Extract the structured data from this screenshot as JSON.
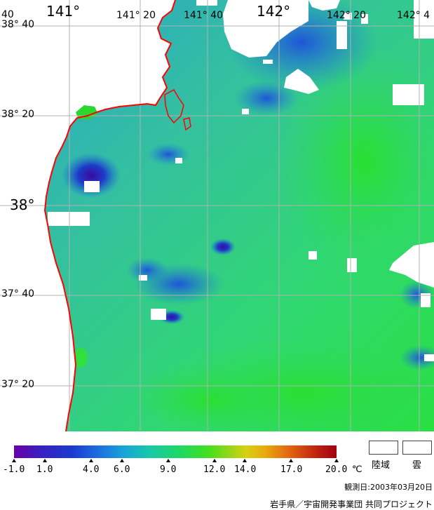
{
  "map": {
    "lon_labels": [
      {
        "text": "40",
        "size": "small"
      },
      {
        "text": "141°",
        "size": "big"
      },
      {
        "text": "141° 20",
        "size": "small"
      },
      {
        "text": "141° 40",
        "size": "small"
      },
      {
        "text": "142°",
        "size": "big"
      },
      {
        "text": "142° 20",
        "size": "small"
      },
      {
        "text": "142° 4",
        "size": "small"
      }
    ],
    "lat_labels": [
      {
        "text": "38° 40",
        "size": "small"
      },
      {
        "text": "38° 20",
        "size": "small"
      },
      {
        "text": "38°",
        "size": "big"
      },
      {
        "text": "37° 40",
        "size": "small"
      },
      {
        "text": "37° 20",
        "size": "small"
      }
    ],
    "colors": {
      "land": "#ffffff",
      "coast": "#ff0000",
      "grid": "#b0b0b0",
      "sst_base": "#3cc890",
      "sst_warm": "#30e040",
      "sst_cool": "#1a6fe0",
      "sst_cold": "#3a10b0"
    }
  },
  "colorbar": {
    "ticks": [
      "-1.0",
      "1.0",
      "4.0",
      "6.0",
      "9.0",
      "12.0",
      "14.0",
      "17.0",
      "20.0"
    ],
    "tick_values": [
      -1.0,
      1.0,
      4.0,
      6.0,
      9.0,
      12.0,
      14.0,
      17.0,
      20.0
    ],
    "unit": "℃",
    "range": [
      -1.0,
      20.0
    ]
  },
  "legend": {
    "land_label": "陸域",
    "cloud_label": "雲"
  },
  "observation_date": "観測日:2003年03月20日",
  "credit": "岩手県／宇宙開発事業団 共同プロジェクト"
}
